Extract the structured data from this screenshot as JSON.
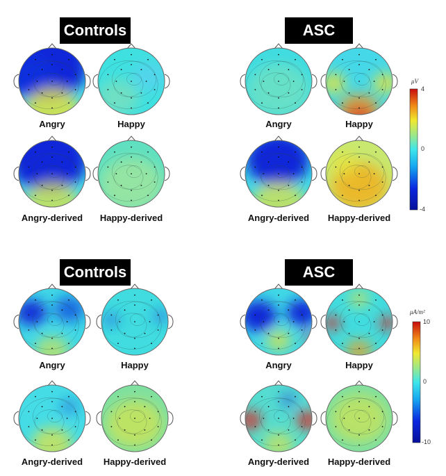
{
  "panels": [
    {
      "group_left": "Controls",
      "group_right": "ASC",
      "labels": [
        "Angry",
        "Happy",
        "Angry",
        "Happy",
        "Angry-derived",
        "Happy-derived",
        "Angry-derived",
        "Happy-derived"
      ],
      "colorbar": {
        "unit": "μV",
        "max": "4",
        "mid": "0",
        "min": "-4"
      }
    },
    {
      "group_left": "Controls",
      "group_right": "ASC",
      "labels": [
        "Angry",
        "Happy",
        "Angry",
        "Happy",
        "Angry-derived",
        "Happy-derived",
        "Angry-derived",
        "Happy-derived"
      ],
      "colorbar": {
        "unit": "μA/m²",
        "max": "10",
        "mid": "0",
        "min": "-10"
      }
    }
  ],
  "colors": {
    "neg": "#0a1fd8",
    "cyan": "#2fd6e8",
    "green": "#7ee0a0",
    "yellow": "#e8e43a",
    "orange": "#f0a020",
    "pos": "#e01818"
  }
}
